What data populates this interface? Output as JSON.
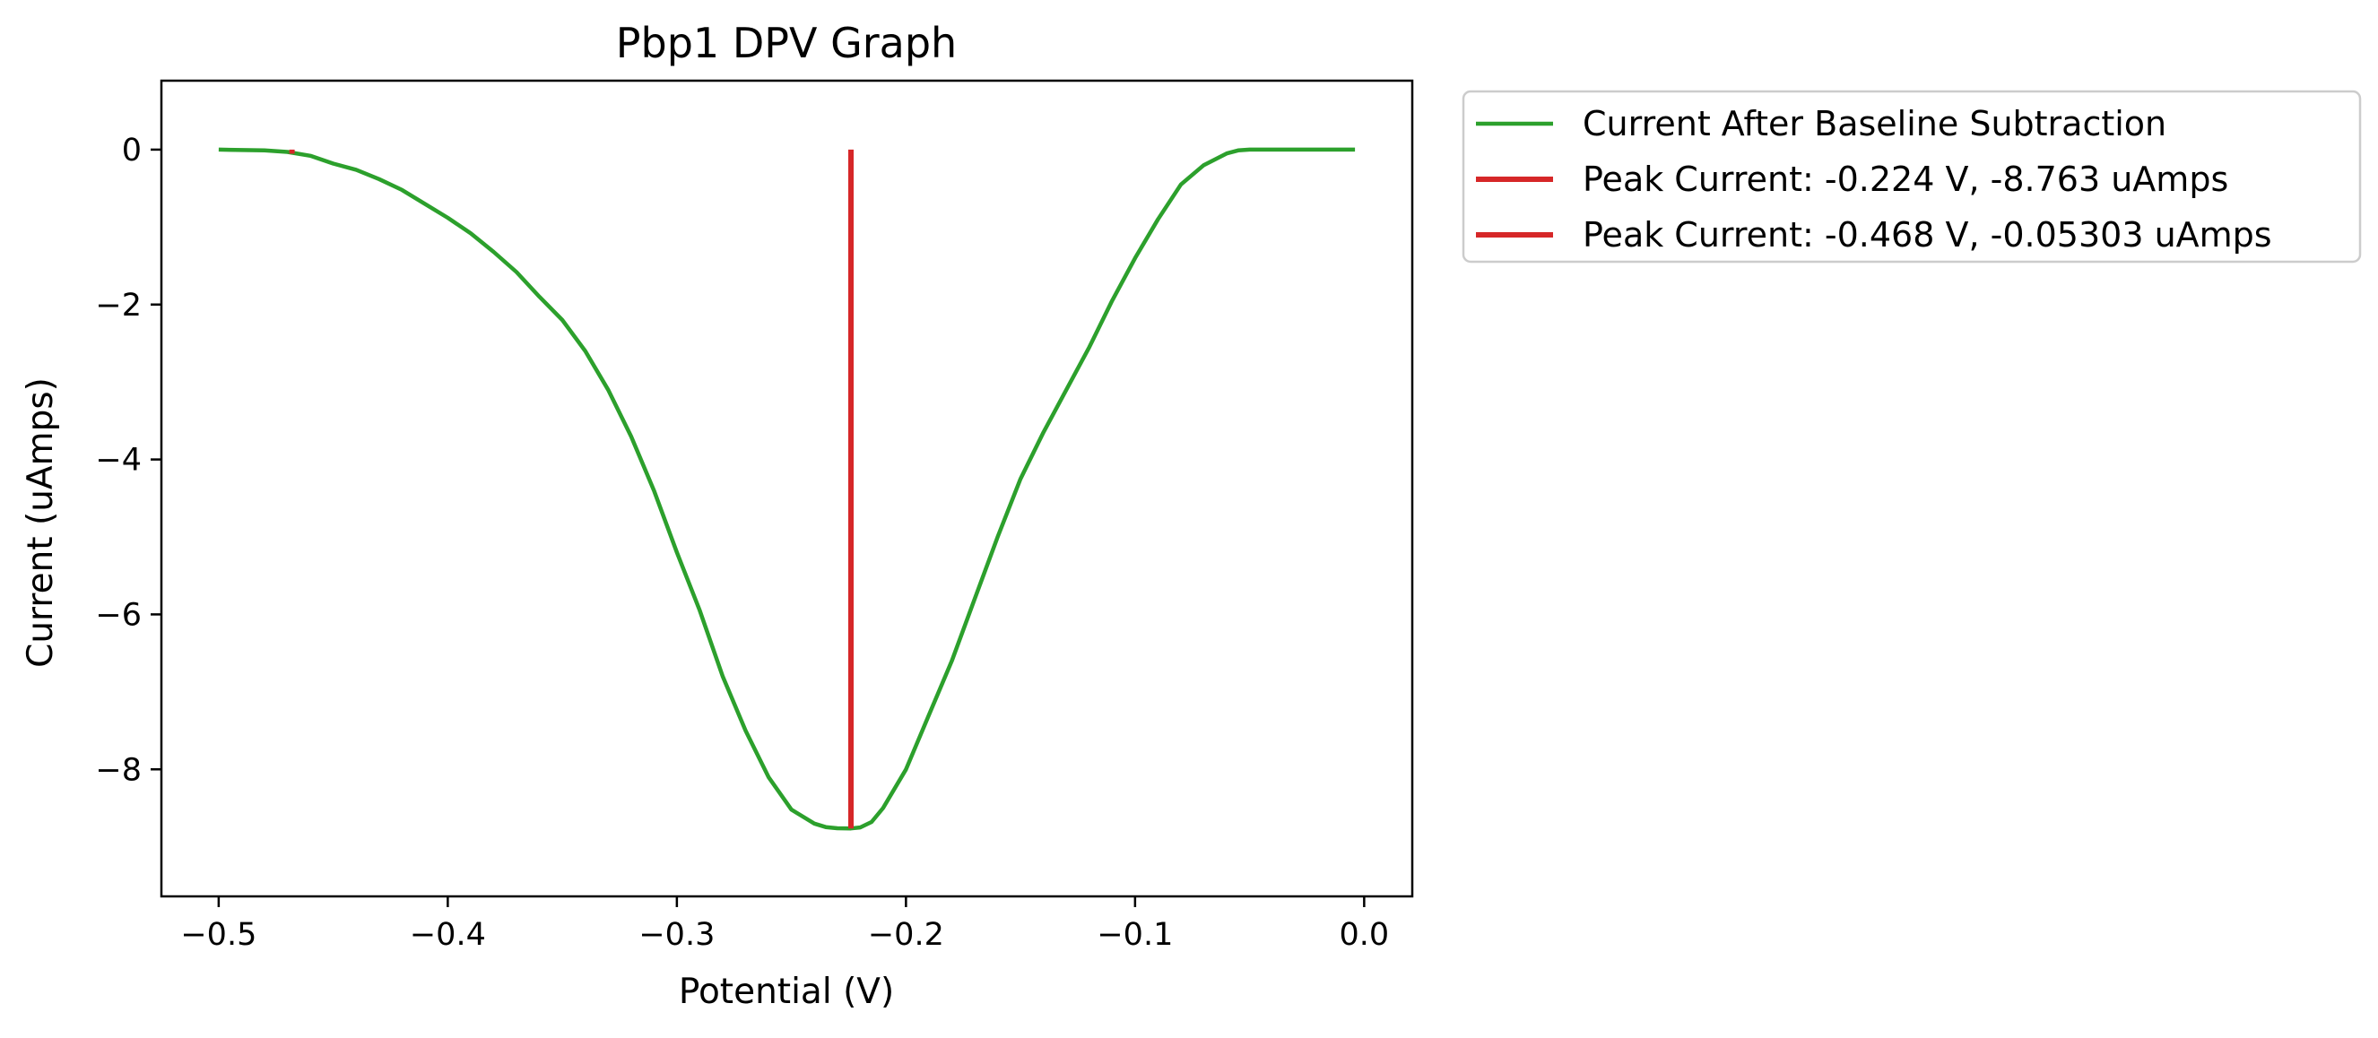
{
  "chart_data": {
    "type": "line",
    "title": "Pbp1 DPV Graph",
    "xlabel": "Potential (V)",
    "ylabel": "Current (uAmps)",
    "xlim": [
      -0.525,
      0.021
    ],
    "ylim": [
      -9.64,
      0.89
    ],
    "xticks": [
      -0.5,
      -0.4,
      -0.3,
      -0.2,
      -0.1,
      0.0
    ],
    "xtick_labels": [
      "−0.5",
      "−0.4",
      "−0.3",
      "−0.2",
      "−0.1",
      "0.0"
    ],
    "yticks": [
      0,
      -2,
      -4,
      -6,
      -8
    ],
    "ytick_labels": [
      "0",
      "−2",
      "−4",
      "−6",
      "−8"
    ],
    "grid": false,
    "legend_position": "outside-upper-right",
    "series": [
      {
        "name": "Current After Baseline Subtraction",
        "color": "#2ca02c",
        "x": [
          -0.5,
          -0.48,
          -0.47,
          -0.46,
          -0.45,
          -0.44,
          -0.43,
          -0.42,
          -0.41,
          -0.4,
          -0.39,
          -0.38,
          -0.37,
          -0.36,
          -0.35,
          -0.34,
          -0.33,
          -0.32,
          -0.31,
          -0.3,
          -0.29,
          -0.28,
          -0.27,
          -0.26,
          -0.25,
          -0.24,
          -0.235,
          -0.23,
          -0.224,
          -0.22,
          -0.215,
          -0.21,
          -0.2,
          -0.19,
          -0.18,
          -0.17,
          -0.16,
          -0.15,
          -0.14,
          -0.13,
          -0.12,
          -0.11,
          -0.1,
          -0.09,
          -0.08,
          -0.07,
          -0.06,
          -0.055,
          -0.05,
          -0.04,
          -0.03,
          -0.02,
          -0.01,
          -0.004
        ],
        "y": [
          0,
          -0.01,
          -0.03,
          -0.08,
          -0.18,
          -0.26,
          -0.38,
          -0.52,
          -0.7,
          -0.88,
          -1.08,
          -1.32,
          -1.58,
          -1.9,
          -2.2,
          -2.6,
          -3.1,
          -3.7,
          -4.4,
          -5.2,
          -5.95,
          -6.8,
          -7.5,
          -8.1,
          -8.52,
          -8.7,
          -8.745,
          -8.76,
          -8.763,
          -8.75,
          -8.68,
          -8.5,
          -8.0,
          -7.3,
          -6.6,
          -5.8,
          -5.0,
          -4.25,
          -3.65,
          -3.1,
          -2.55,
          -1.95,
          -1.4,
          -0.9,
          -0.45,
          -0.2,
          -0.05,
          -0.01,
          0,
          0,
          0,
          0,
          0,
          0
        ]
      },
      {
        "name": "Peak Current: -0.224 V, -8.763 uAmps",
        "color": "#d62728",
        "x": [
          -0.224,
          -0.224
        ],
        "y": [
          0,
          -8.763
        ]
      },
      {
        "name": "Peak Current: -0.468 V, -0.05303 uAmps",
        "color": "#d62728",
        "x": [
          -0.468,
          -0.468
        ],
        "y": [
          0,
          -0.05303
        ]
      }
    ]
  }
}
